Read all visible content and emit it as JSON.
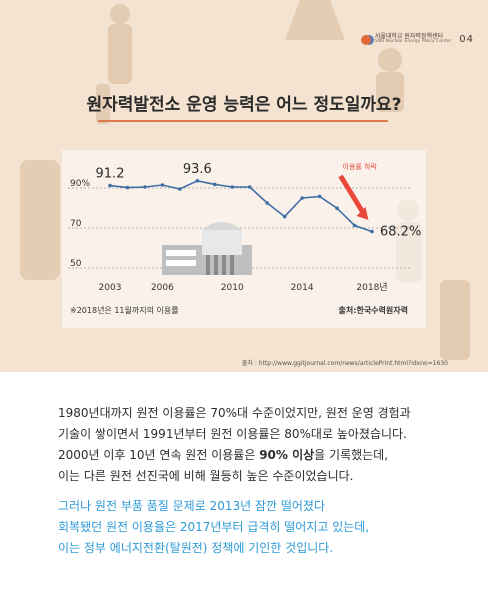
{
  "header": {
    "logo_ko": "서울대학교 원자력정책센터",
    "logo_en": "SNU Nuclear Energy Policy Center",
    "page_number": "04"
  },
  "title": "원자력발전소 운영 능력은 어느 정도일까요?",
  "chart_data": {
    "type": "line",
    "x": [
      2003,
      2004,
      2005,
      2006,
      2007,
      2008,
      2009,
      2010,
      2011,
      2012,
      2013,
      2014,
      2015,
      2016,
      2017,
      2018
    ],
    "values": [
      91.2,
      90.2,
      90.5,
      91.5,
      89.5,
      93.6,
      91.8,
      90.5,
      90.5,
      82.5,
      75.7,
      85.0,
      85.8,
      79.9,
      71.3,
      68.2
    ],
    "x_tick_labels": [
      "2003",
      "2006",
      "2010",
      "2014",
      "2018년"
    ],
    "x_tick_values": [
      2003,
      2006,
      2010,
      2014,
      2018
    ],
    "y_tick_labels": [
      "90%",
      "70",
      "50"
    ],
    "y_tick_values": [
      90,
      70,
      50
    ],
    "ylim": [
      50,
      100
    ],
    "data_labels": [
      {
        "x": 2003,
        "text": "91.2"
      },
      {
        "x": 2008,
        "text": "93.6"
      },
      {
        "x": 2018,
        "text": "68.2%"
      }
    ],
    "annotation": "이용률 하락",
    "line_color": "#3f6ea5",
    "arrow_color": "#e8473a",
    "grid": true,
    "grid_style": "dotted"
  },
  "chart_footnote": "※2018년은 11월까지의 이용률",
  "chart_source": "출처:한국수력원자력",
  "url_note": "출처 : http://www.ggitjournal.com/news/articlePrint.html?idxno=1630",
  "paragraph1": [
    {
      "type": "text",
      "value": "1980년대까지 원전 이용률은 70%대 수준이었지만, 원전 운영 경험과"
    },
    {
      "type": "text",
      "value": "기술이 쌓이면서 1991년부터 원전 이용률은 80%대로 높아졌습니다."
    },
    {
      "type": "mixed",
      "before": "2000년 이후 10년 연속 원전 이용률은 ",
      "highlight": "90% 이상",
      "after": "을 기록했는데,"
    },
    {
      "type": "text",
      "value": "이는 다른 원전 선진국에 비해 월등히 높은 수준이었습니다."
    }
  ],
  "paragraph2": [
    "그러나 원전 부품 품질 문제로 2013년 잠깐 떨어졌다",
    "회복됐던 원전 이용율은 2017년부터 급격히 떨어지고 있는데,",
    "이는 정부 에너지전환(탈원전) 정책에 기인한 것입니다."
  ],
  "colors": {
    "background_top": "#f3e3d0",
    "title_underline": "#d97b4a",
    "paragraph2": "#2d9ad6"
  }
}
